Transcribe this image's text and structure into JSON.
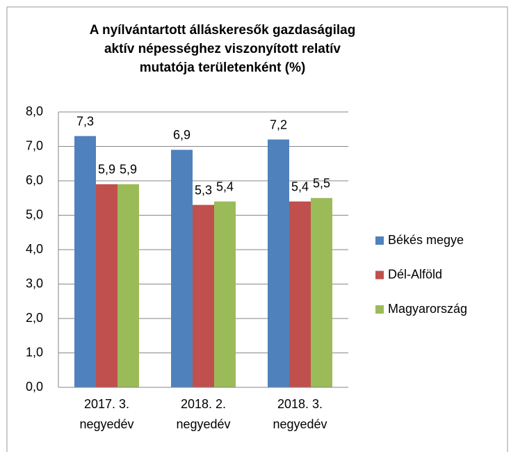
{
  "chart_data": {
    "type": "bar",
    "title": "A nyílvántartott álláskeresők gazdaságilag aktív népességhez viszonyított relatív mutatója területenként (%)",
    "categories": [
      "2017. 3. negyedév",
      "2018. 2. negyedév",
      "2018. 3. negyedév"
    ],
    "series": [
      {
        "name": "Békés megye",
        "color": "#4f81bd",
        "values": [
          7.3,
          6.9,
          7.2
        ],
        "value_labels": [
          "7,3",
          "6,9",
          "7,2"
        ]
      },
      {
        "name": "Dél-Alföld",
        "color": "#c0504d",
        "values": [
          5.9,
          5.3,
          5.4
        ],
        "value_labels": [
          "5,9",
          "5,3",
          "5,4"
        ]
      },
      {
        "name": "Magyarország",
        "color": "#9bbb59",
        "values": [
          5.9,
          5.4,
          5.5
        ],
        "value_labels": [
          "5,9",
          "5,4",
          "5,5"
        ]
      }
    ],
    "ylim": [
      0,
      8
    ],
    "yticks": [
      {
        "value": 0,
        "label": "0,0"
      },
      {
        "value": 1,
        "label": "1,0"
      },
      {
        "value": 2,
        "label": "2,0"
      },
      {
        "value": 3,
        "label": "3,0"
      },
      {
        "value": 4,
        "label": "4,0"
      },
      {
        "value": 5,
        "label": "5,0"
      },
      {
        "value": 6,
        "label": "6,0"
      },
      {
        "value": 7,
        "label": "7,0"
      },
      {
        "value": 8,
        "label": "8,0"
      }
    ],
    "grid": true,
    "legend": "right"
  }
}
